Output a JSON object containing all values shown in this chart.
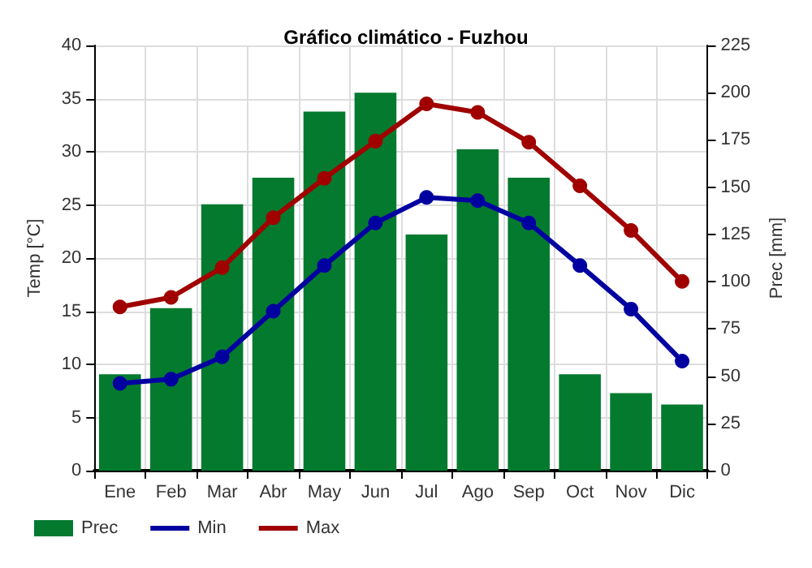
{
  "chart_data": {
    "type": "bar",
    "title": "Gráfico climático - Fuzhou",
    "ylabel": "Temp [°C]",
    "y2label": "Prec [mm]",
    "categories": [
      "Ene",
      "Feb",
      "Mar",
      "Abr",
      "May",
      "Jun",
      "Jul",
      "Ago",
      "Sep",
      "Oct",
      "Nov",
      "Dic"
    ],
    "series": [
      {
        "name": "Prec",
        "axis": "y2",
        "color": "#047a2f",
        "values": [
          51,
          86,
          141,
          155,
          190,
          200,
          125,
          170,
          155,
          51,
          41,
          35
        ]
      },
      {
        "name": "Min",
        "type": "line",
        "color": "#0000a0",
        "values": [
          8.2,
          8.6,
          10.7,
          15,
          19.3,
          23.3,
          25.7,
          25.4,
          23.3,
          19.3,
          15.2,
          10.3
        ]
      },
      {
        "name": "Max",
        "type": "line",
        "color": "#a00000",
        "values": [
          15.4,
          16.3,
          19.1,
          23.8,
          27.5,
          31,
          34.5,
          33.7,
          30.9,
          26.8,
          22.6,
          17.8
        ]
      }
    ],
    "ylim": [
      0,
      40
    ],
    "yticks": [
      0,
      5,
      10,
      15,
      20,
      25,
      30,
      35,
      40
    ],
    "y2lim": [
      0,
      225
    ],
    "y2ticks": [
      0,
      25,
      50,
      75,
      100,
      125,
      150,
      175,
      200,
      225
    ],
    "grid": true,
    "legend": "bottom",
    "marker": "circle",
    "line_style": "solid"
  }
}
